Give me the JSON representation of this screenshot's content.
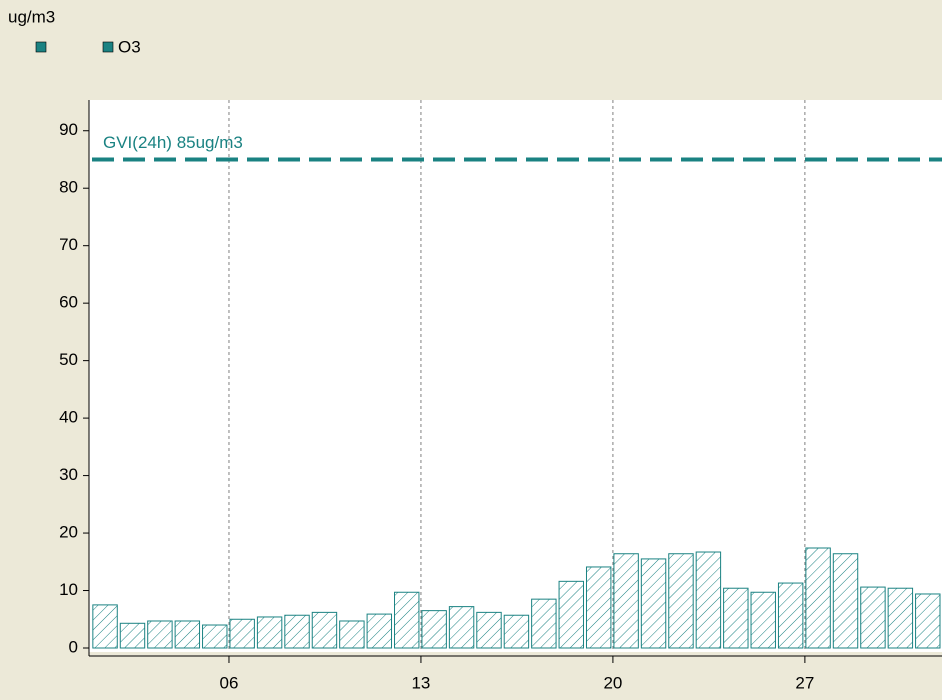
{
  "chart_data": {
    "type": "bar",
    "ylabel": "ug/m3",
    "series": [
      {
        "name": "O3",
        "color": "#1a8282",
        "values": [
          7.5,
          4.3,
          4.7,
          4.7,
          4.0,
          5.0,
          5.4,
          5.7,
          6.2,
          4.7,
          5.9,
          9.7,
          6.5,
          7.2,
          6.2,
          5.7,
          8.5,
          11.6,
          14.1,
          16.4,
          15.5,
          16.4,
          16.7,
          10.4,
          9.7,
          11.3,
          17.4,
          16.4,
          10.6,
          10.4,
          9.4
        ]
      }
    ],
    "x": [
      1,
      2,
      3,
      4,
      5,
      6,
      7,
      8,
      9,
      10,
      11,
      12,
      13,
      14,
      15,
      16,
      17,
      18,
      19,
      20,
      21,
      22,
      23,
      24,
      25,
      26,
      27,
      28,
      29,
      30,
      31
    ],
    "xlim": [
      1,
      32
    ],
    "xticks": [
      {
        "value": 6,
        "label": "06"
      },
      {
        "value": 13,
        "label": "13"
      },
      {
        "value": 20,
        "label": "20"
      },
      {
        "value": 27,
        "label": "27"
      }
    ],
    "ylim": [
      0,
      95
    ],
    "yticks": [
      0,
      10,
      20,
      30,
      40,
      50,
      60,
      70,
      80,
      90
    ],
    "grid": true,
    "reference_line": {
      "value": 85,
      "label": "GVI(24h) 85ug/m3",
      "color": "#1a8282"
    }
  }
}
